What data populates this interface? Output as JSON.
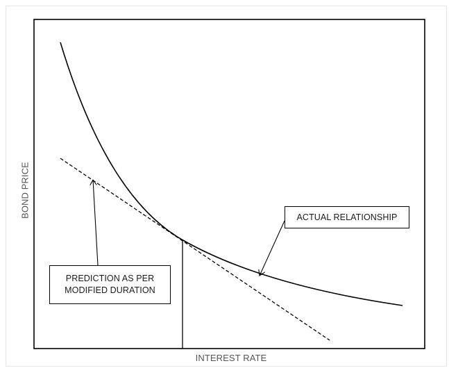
{
  "diagram": {
    "x_axis_label": "INTEREST RATE",
    "y_axis_label": "BOND PRICE",
    "callouts": {
      "actual": "ACTUAL RELATIONSHIP",
      "prediction_line1": "PREDICTION AS PER",
      "prediction_line2": "MODIFIED DURATION"
    },
    "curves": {
      "actual": {
        "style": "solid",
        "color": "#000000"
      },
      "tangent": {
        "style": "dashed",
        "color": "#000000"
      }
    }
  }
}
